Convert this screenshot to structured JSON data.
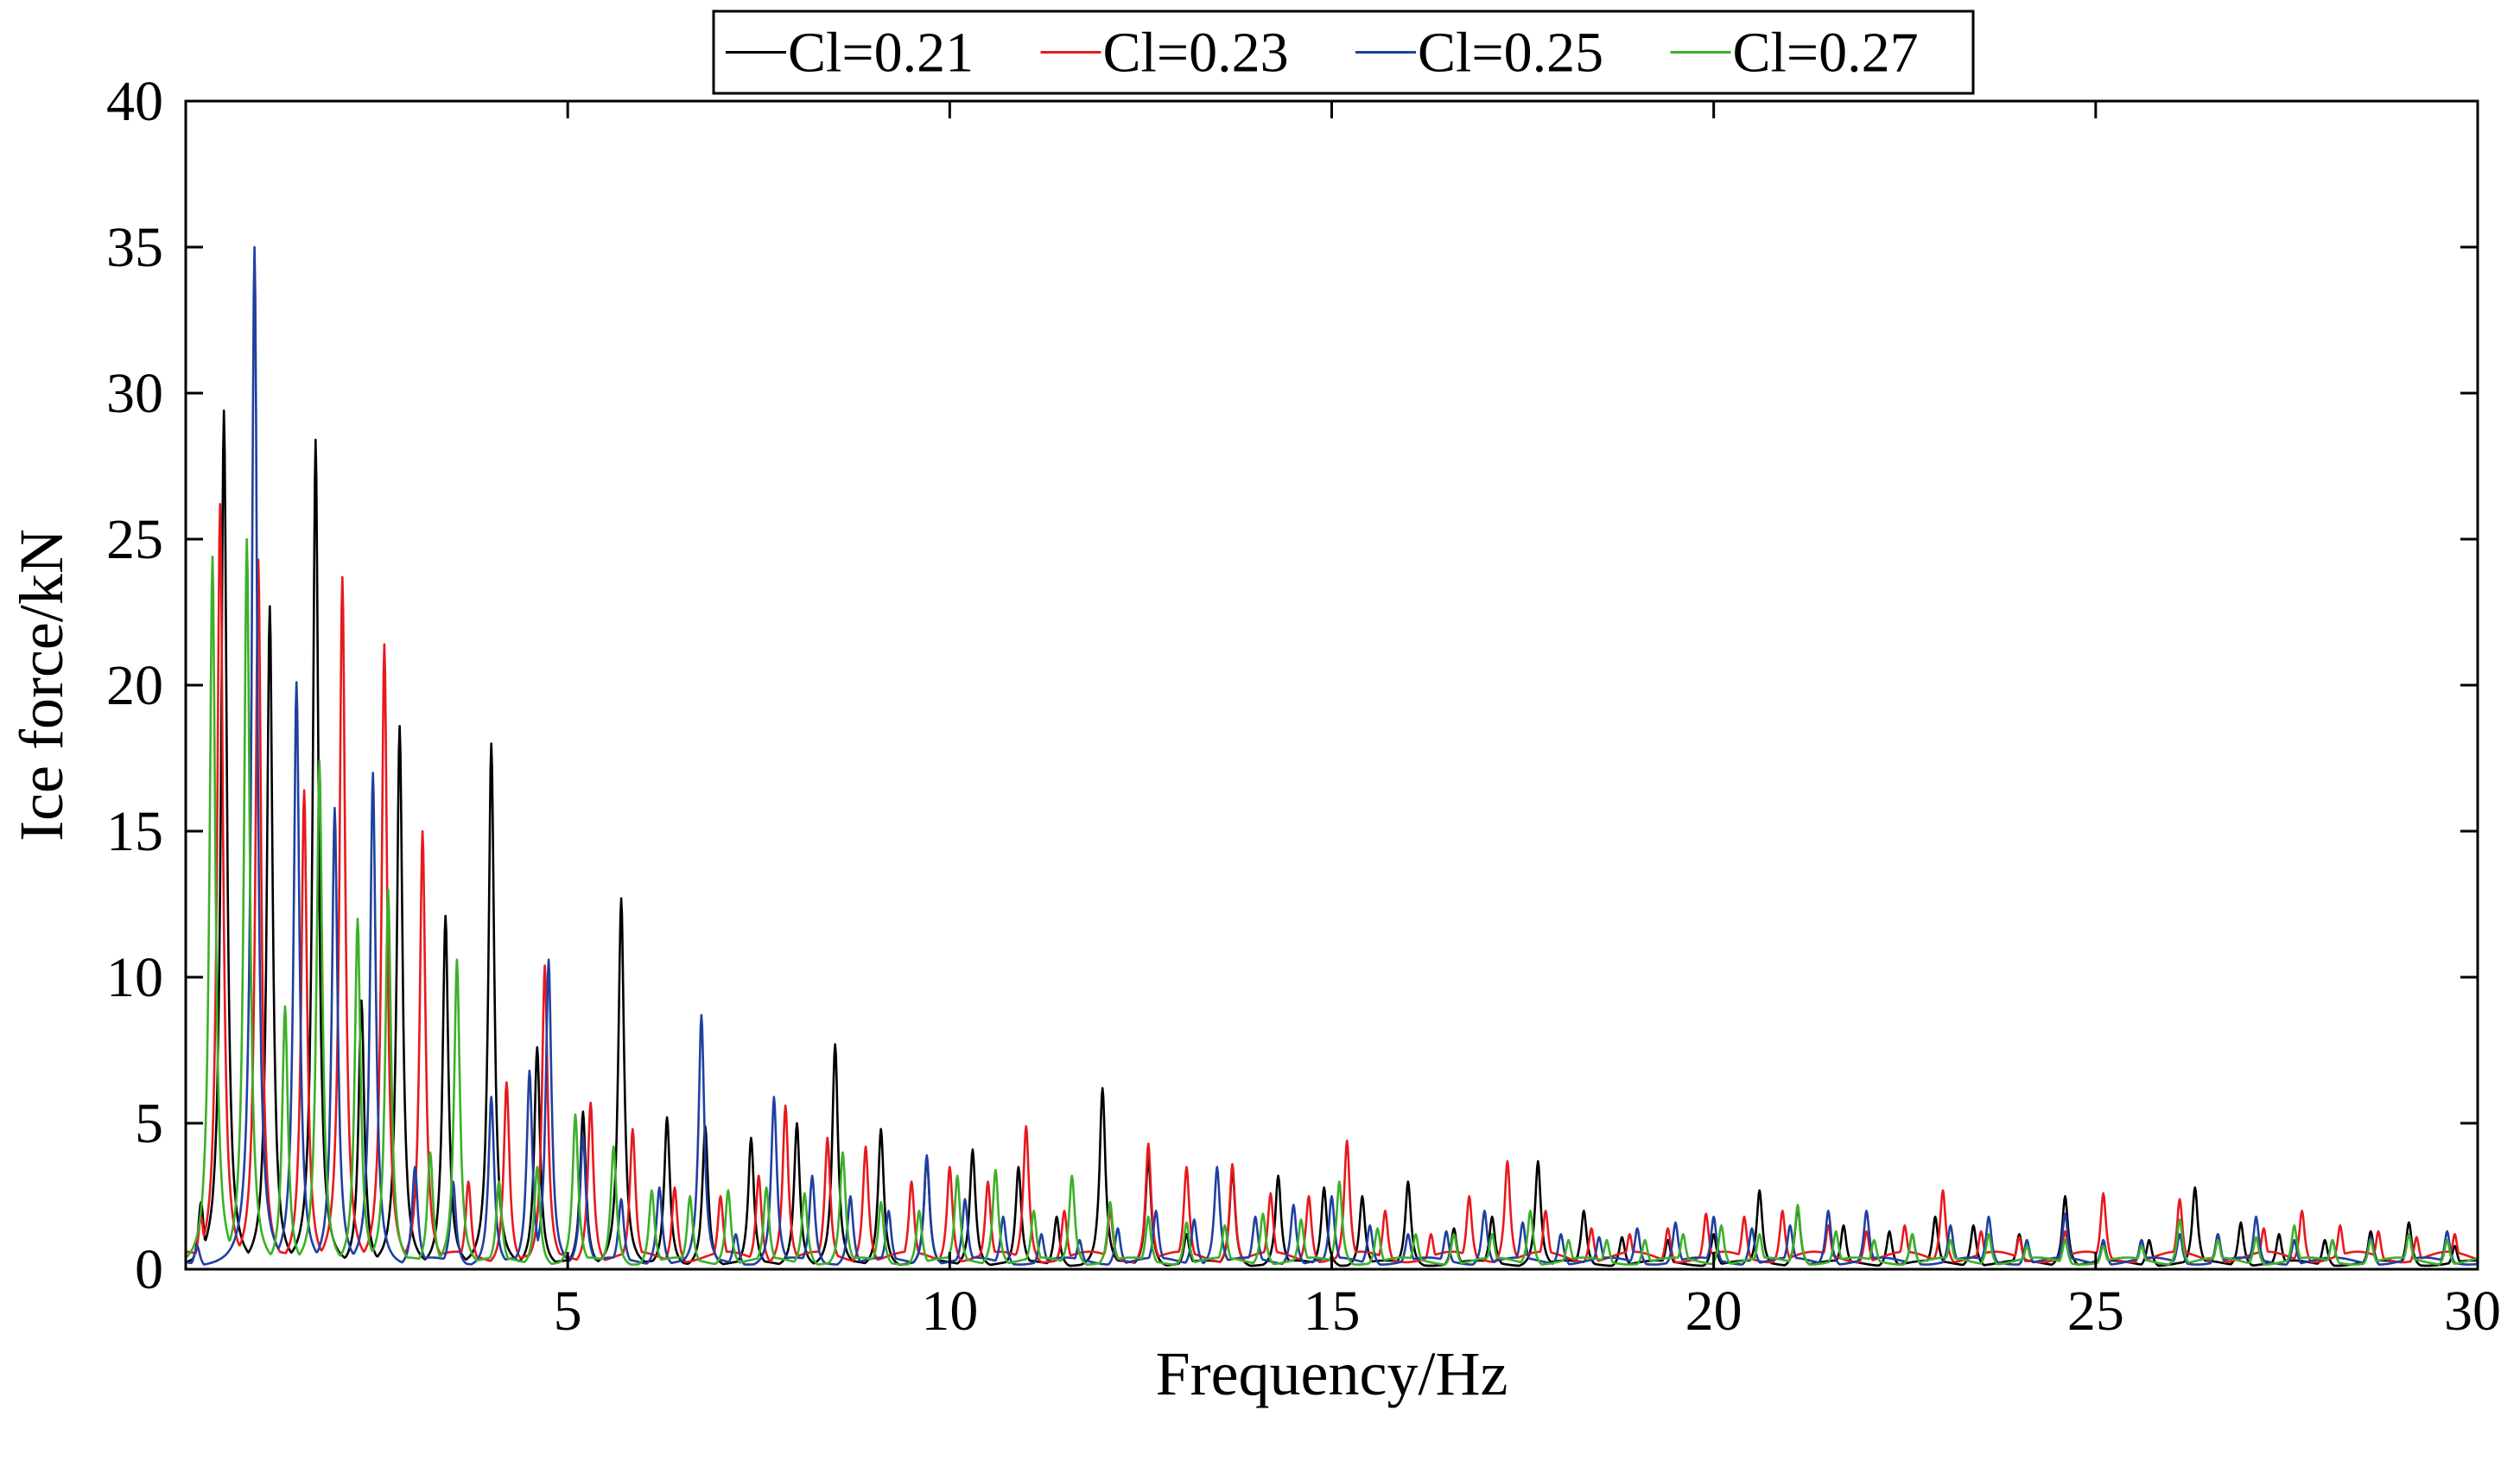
{
  "chart_data": {
    "type": "line",
    "title": "",
    "xlabel": "Frequency/Hz",
    "ylabel": "Ice  force/kN",
    "xlim": [
      0,
      30
    ],
    "ylim": [
      0,
      40
    ],
    "xticks": [
      5,
      10,
      15,
      20,
      25,
      30
    ],
    "yticks": [
      0,
      5,
      10,
      15,
      20,
      25,
      30,
      35,
      40
    ],
    "grid": false,
    "legend_position": "top-center, outside plot, horizontal",
    "series": [
      {
        "name": "Cl=0.21",
        "color": "#000000",
        "baseline": 0.3,
        "peaks": [
          [
            0.2,
            2.3
          ],
          [
            0.5,
            29.4
          ],
          [
            1.1,
            22.7
          ],
          [
            1.7,
            28.4
          ],
          [
            2.3,
            9.2
          ],
          [
            2.8,
            18.6
          ],
          [
            3.4,
            12.1
          ],
          [
            4.0,
            18.0
          ],
          [
            4.6,
            7.6
          ],
          [
            5.2,
            5.4
          ],
          [
            5.7,
            12.7
          ],
          [
            6.3,
            5.2
          ],
          [
            6.8,
            4.9
          ],
          [
            7.4,
            4.5
          ],
          [
            8.0,
            5.0
          ],
          [
            8.5,
            7.7
          ],
          [
            9.1,
            4.8
          ],
          [
            9.7,
            3.8
          ],
          [
            10.3,
            4.1
          ],
          [
            10.9,
            3.5
          ],
          [
            11.4,
            1.8
          ],
          [
            12.0,
            6.2
          ],
          [
            12.6,
            3.8
          ],
          [
            13.1,
            1.2
          ],
          [
            13.7,
            3.4
          ],
          [
            14.3,
            3.2
          ],
          [
            14.9,
            2.8
          ],
          [
            15.4,
            2.5
          ],
          [
            16.0,
            3.0
          ],
          [
            16.6,
            1.4
          ],
          [
            17.1,
            1.8
          ],
          [
            17.7,
            3.7
          ],
          [
            18.3,
            2.0
          ],
          [
            18.8,
            1.1
          ],
          [
            19.4,
            1.0
          ],
          [
            20.0,
            1.2
          ],
          [
            20.6,
            2.7
          ],
          [
            21.1,
            2.1
          ],
          [
            21.7,
            1.5
          ],
          [
            22.3,
            1.3
          ],
          [
            22.9,
            1.8
          ],
          [
            23.4,
            1.5
          ],
          [
            24.0,
            1.2
          ],
          [
            24.6,
            2.5
          ],
          [
            25.1,
            0.9
          ],
          [
            25.7,
            1.0
          ],
          [
            26.3,
            2.8
          ],
          [
            26.9,
            1.6
          ],
          [
            27.4,
            1.2
          ],
          [
            28.0,
            1.0
          ],
          [
            28.6,
            1.3
          ],
          [
            29.1,
            1.6
          ],
          [
            29.7,
            0.8
          ]
        ]
      },
      {
        "name": "Cl=0.23",
        "color": "#e8191e",
        "baseline": 0.6,
        "peaks": [
          [
            0.2,
            1.8
          ],
          [
            0.45,
            26.2
          ],
          [
            0.95,
            24.3
          ],
          [
            1.55,
            16.4
          ],
          [
            2.05,
            23.7
          ],
          [
            2.6,
            21.4
          ],
          [
            3.1,
            15.0
          ],
          [
            3.7,
            3.0
          ],
          [
            4.2,
            6.4
          ],
          [
            4.7,
            10.4
          ],
          [
            5.3,
            5.7
          ],
          [
            5.85,
            4.8
          ],
          [
            6.4,
            2.8
          ],
          [
            7.0,
            2.5
          ],
          [
            7.5,
            3.2
          ],
          [
            7.85,
            5.6
          ],
          [
            8.4,
            4.5
          ],
          [
            8.9,
            4.2
          ],
          [
            9.5,
            3.0
          ],
          [
            10.0,
            3.5
          ],
          [
            10.5,
            3.0
          ],
          [
            11.0,
            4.9
          ],
          [
            11.5,
            2.0
          ],
          [
            12.1,
            2.0
          ],
          [
            12.6,
            4.3
          ],
          [
            13.1,
            3.5
          ],
          [
            13.7,
            3.6
          ],
          [
            14.2,
            2.6
          ],
          [
            14.7,
            2.5
          ],
          [
            15.2,
            4.4
          ],
          [
            15.7,
            2.0
          ],
          [
            16.3,
            1.2
          ],
          [
            16.8,
            2.5
          ],
          [
            17.3,
            3.7
          ],
          [
            17.8,
            2.0
          ],
          [
            18.4,
            1.4
          ],
          [
            18.9,
            1.2
          ],
          [
            19.4,
            1.4
          ],
          [
            19.9,
            1.9
          ],
          [
            20.4,
            1.8
          ],
          [
            20.9,
            2.0
          ],
          [
            21.5,
            1.5
          ],
          [
            22.0,
            1.3
          ],
          [
            22.5,
            1.5
          ],
          [
            23.0,
            2.7
          ],
          [
            23.5,
            1.3
          ],
          [
            24.0,
            1.1
          ],
          [
            24.6,
            1.3
          ],
          [
            25.1,
            2.6
          ],
          [
            25.6,
            1.0
          ],
          [
            26.1,
            2.4
          ],
          [
            26.6,
            1.2
          ],
          [
            27.2,
            1.4
          ],
          [
            27.7,
            2.0
          ],
          [
            28.2,
            1.5
          ],
          [
            28.7,
            1.3
          ],
          [
            29.2,
            1.1
          ],
          [
            29.7,
            1.2
          ]
        ]
      },
      {
        "name": "Cl=0.25",
        "color": "#2040a0",
        "baseline": 0.4,
        "peaks": [
          [
            0.15,
            0.8
          ],
          [
            0.9,
            35.0
          ],
          [
            1.45,
            20.1
          ],
          [
            1.95,
            15.8
          ],
          [
            2.45,
            17.0
          ],
          [
            3.0,
            3.5
          ],
          [
            3.5,
            3.0
          ],
          [
            4.0,
            5.9
          ],
          [
            4.5,
            6.8
          ],
          [
            4.75,
            10.6
          ],
          [
            5.2,
            4.6
          ],
          [
            5.7,
            2.4
          ],
          [
            6.2,
            2.8
          ],
          [
            6.75,
            8.7
          ],
          [
            7.2,
            1.2
          ],
          [
            7.7,
            5.9
          ],
          [
            8.2,
            3.2
          ],
          [
            8.7,
            2.5
          ],
          [
            9.2,
            2.0
          ],
          [
            9.7,
            3.9
          ],
          [
            10.2,
            2.4
          ],
          [
            10.7,
            1.8
          ],
          [
            11.2,
            1.2
          ],
          [
            11.7,
            1.0
          ],
          [
            12.2,
            1.4
          ],
          [
            12.7,
            2.0
          ],
          [
            13.2,
            1.7
          ],
          [
            13.5,
            3.5
          ],
          [
            14.0,
            1.8
          ],
          [
            14.5,
            2.2
          ],
          [
            15.0,
            2.5
          ],
          [
            15.5,
            1.5
          ],
          [
            16.0,
            1.2
          ],
          [
            16.5,
            1.3
          ],
          [
            17.0,
            2.0
          ],
          [
            17.5,
            1.6
          ],
          [
            18.0,
            1.2
          ],
          [
            18.5,
            1.1
          ],
          [
            19.0,
            1.4
          ],
          [
            19.5,
            1.6
          ],
          [
            20.0,
            1.8
          ],
          [
            20.5,
            1.4
          ],
          [
            21.0,
            1.5
          ],
          [
            21.5,
            2.0
          ],
          [
            22.0,
            2.0
          ],
          [
            22.6,
            1.2
          ],
          [
            23.1,
            1.5
          ],
          [
            23.6,
            1.8
          ],
          [
            24.1,
            1.0
          ],
          [
            24.6,
            1.9
          ],
          [
            25.1,
            1.0
          ],
          [
            25.6,
            1.0
          ],
          [
            26.1,
            1.2
          ],
          [
            26.6,
            1.2
          ],
          [
            27.1,
            1.8
          ],
          [
            27.6,
            1.0
          ],
          [
            28.1,
            1.0
          ],
          [
            28.6,
            1.1
          ],
          [
            29.1,
            1.2
          ],
          [
            29.6,
            1.3
          ]
        ]
      },
      {
        "name": "Cl=0.27",
        "color": "#3cb028",
        "baseline": 0.4,
        "peaks": [
          [
            0.35,
            24.4
          ],
          [
            0.8,
            25.0
          ],
          [
            1.3,
            9.0
          ],
          [
            1.75,
            17.4
          ],
          [
            2.25,
            12.0
          ],
          [
            2.65,
            13.0
          ],
          [
            3.2,
            4.0
          ],
          [
            3.55,
            10.6
          ],
          [
            4.1,
            3.0
          ],
          [
            4.6,
            3.5
          ],
          [
            5.1,
            5.3
          ],
          [
            5.6,
            4.2
          ],
          [
            6.1,
            2.7
          ],
          [
            6.6,
            2.5
          ],
          [
            7.1,
            2.7
          ],
          [
            7.6,
            2.8
          ],
          [
            8.1,
            2.6
          ],
          [
            8.6,
            4.0
          ],
          [
            9.1,
            2.3
          ],
          [
            9.6,
            2.0
          ],
          [
            10.1,
            3.2
          ],
          [
            10.6,
            3.4
          ],
          [
            11.1,
            2.0
          ],
          [
            11.6,
            3.2
          ],
          [
            12.1,
            2.3
          ],
          [
            12.6,
            1.8
          ],
          [
            13.1,
            1.6
          ],
          [
            13.6,
            1.5
          ],
          [
            14.1,
            1.9
          ],
          [
            14.6,
            1.7
          ],
          [
            15.1,
            3.0
          ],
          [
            15.6,
            1.4
          ],
          [
            16.1,
            1.2
          ],
          [
            16.6,
            1.2
          ],
          [
            17.1,
            1.2
          ],
          [
            17.6,
            2.0
          ],
          [
            18.1,
            1.0
          ],
          [
            18.6,
            1.0
          ],
          [
            19.1,
            1.0
          ],
          [
            19.6,
            1.2
          ],
          [
            20.1,
            1.5
          ],
          [
            20.6,
            1.2
          ],
          [
            21.1,
            2.2
          ],
          [
            21.6,
            1.3
          ],
          [
            22.1,
            1.0
          ],
          [
            22.6,
            1.2
          ],
          [
            23.1,
            1.0
          ],
          [
            23.6,
            1.2
          ],
          [
            24.1,
            0.8
          ],
          [
            24.6,
            1.0
          ],
          [
            25.1,
            0.8
          ],
          [
            25.6,
            0.8
          ],
          [
            26.1,
            1.7
          ],
          [
            26.6,
            1.0
          ],
          [
            27.1,
            1.1
          ],
          [
            27.6,
            1.5
          ],
          [
            28.1,
            1.0
          ],
          [
            28.6,
            1.0
          ],
          [
            29.1,
            1.2
          ],
          [
            29.6,
            1.0
          ]
        ]
      }
    ]
  }
}
